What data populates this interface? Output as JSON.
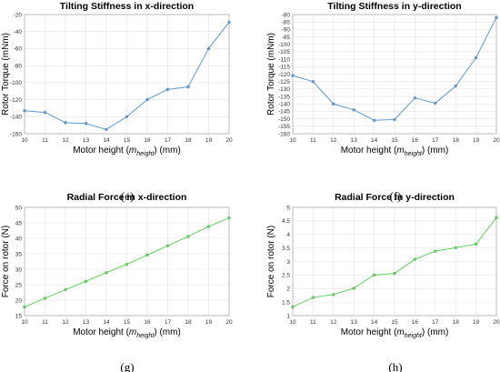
{
  "chart_data": [
    {
      "type": "line",
      "panel": "(e)",
      "title": "Tilting Stiffness in x-direction",
      "xlabel": {
        "prefix": "Motor height (",
        "var": "m",
        "sub": "height",
        "suffix": ") (mm)"
      },
      "ylabel": "Rotor Torque (mNm)",
      "x": [
        10,
        11,
        12,
        13,
        14,
        15,
        16,
        17,
        18,
        19,
        20
      ],
      "xlim": [
        10,
        20
      ],
      "ylim": [
        -160,
        -20
      ],
      "yticks": [
        -160,
        -140,
        -120,
        -100,
        -80,
        -60,
        -40,
        -20
      ],
      "grid": true,
      "series": [
        {
          "color": "#5b9bd5",
          "values": [
            -133,
            -135,
            -147,
            -148,
            -155,
            -140,
            -120,
            -108,
            -105,
            -60,
            -29
          ]
        }
      ]
    },
    {
      "type": "line",
      "panel": "(f)",
      "title": "Tilting Stiffness in y-direction",
      "xlabel": {
        "prefix": "Motor height (",
        "var": "m",
        "sub": "height",
        "suffix": ") (mm)"
      },
      "ylabel": "Rotor Torque (mNm)",
      "x": [
        10,
        11,
        12,
        13,
        14,
        15,
        16,
        17,
        18,
        19,
        20
      ],
      "xlim": [
        10,
        20
      ],
      "ylim": [
        -160,
        -80
      ],
      "yticks": [
        -160,
        -155,
        -150,
        -145,
        -140,
        -135,
        -130,
        -125,
        -120,
        -115,
        -110,
        -105,
        -100,
        -95,
        -90,
        -85,
        -80
      ],
      "grid": true,
      "series": [
        {
          "color": "#5b9bd5",
          "values": [
            -121,
            -125,
            -140,
            -144,
            -151,
            -150.5,
            -136,
            -139.5,
            -128,
            -109,
            -82
          ]
        }
      ]
    },
    {
      "type": "line",
      "panel": "(g)",
      "title": "Radial Force in x-direction",
      "xlabel": {
        "prefix": "Motor height (",
        "var": "m",
        "sub": "height",
        "suffix": ") (mm)"
      },
      "ylabel": "Force on rotor (N)",
      "x": [
        10,
        11,
        12,
        13,
        14,
        15,
        16,
        17,
        18,
        19,
        20
      ],
      "xlim": [
        10,
        20
      ],
      "ylim": [
        15,
        50
      ],
      "yticks": [
        15,
        20,
        25,
        30,
        35,
        40,
        45,
        50
      ],
      "grid": true,
      "series": [
        {
          "color": "#5ed65a",
          "values": [
            17.8,
            20.6,
            23.4,
            26.1,
            28.9,
            31.6,
            34.6,
            37.6,
            40.6,
            43.8,
            46.6
          ]
        }
      ]
    },
    {
      "type": "line",
      "panel": "(h)",
      "title": "Radial Force in y-direction",
      "xlabel": {
        "prefix": "Motor height (",
        "var": "m",
        "sub": "height",
        "suffix": ") (mm)"
      },
      "ylabel": "Force on rotor (N)",
      "x": [
        10,
        11,
        12,
        13,
        14,
        15,
        16,
        17,
        18,
        19,
        20
      ],
      "xlim": [
        10,
        20
      ],
      "ylim": [
        1,
        5
      ],
      "yticks": [
        1,
        1.5,
        2,
        2.5,
        3,
        3.5,
        4,
        4.5,
        5
      ],
      "grid": true,
      "series": [
        {
          "color": "#5ed65a",
          "values": [
            1.32,
            1.67,
            1.78,
            2.01,
            2.5,
            2.56,
            3.08,
            3.38,
            3.51,
            3.64,
            4.62
          ]
        }
      ]
    }
  ]
}
